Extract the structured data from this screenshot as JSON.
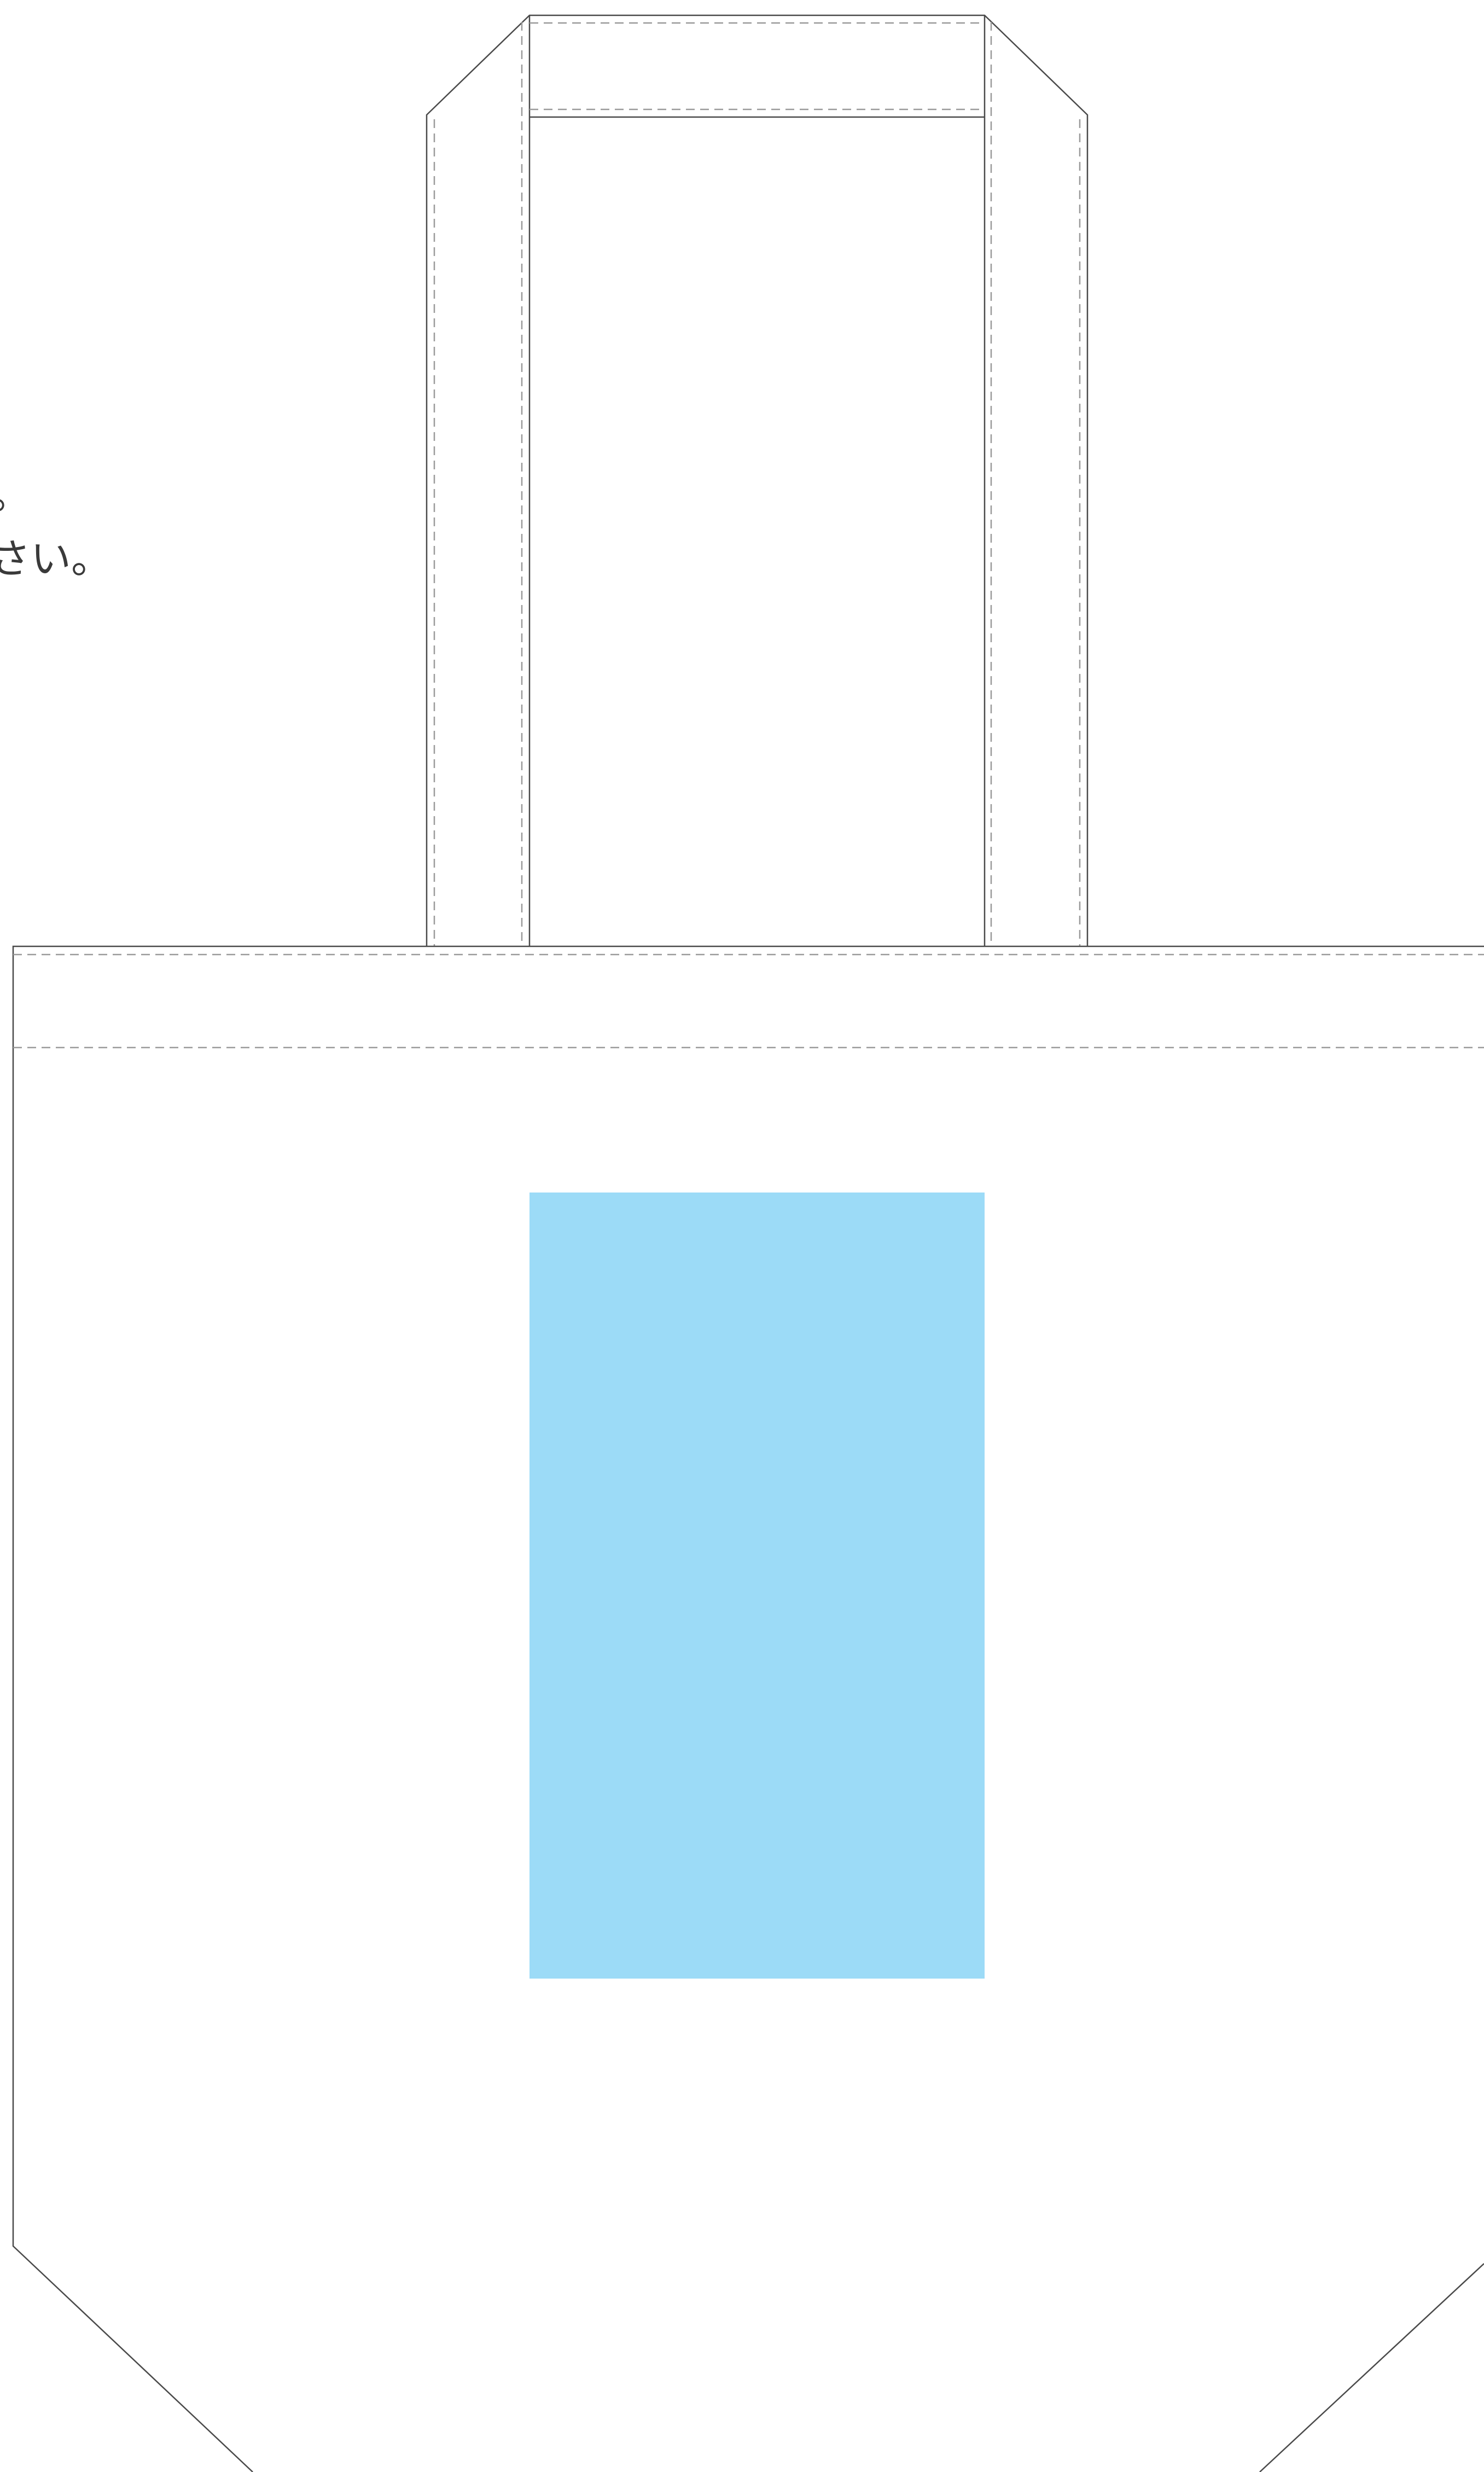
{
  "instructions": {
    "lines": [
      "。",
      "さい。"
    ]
  },
  "colors": {
    "outline": "#4a4a4a",
    "stitch": "#9a9a9a",
    "print_area": "#9cdbf7",
    "background": "#ffffff",
    "text": "#3a3a3a"
  }
}
